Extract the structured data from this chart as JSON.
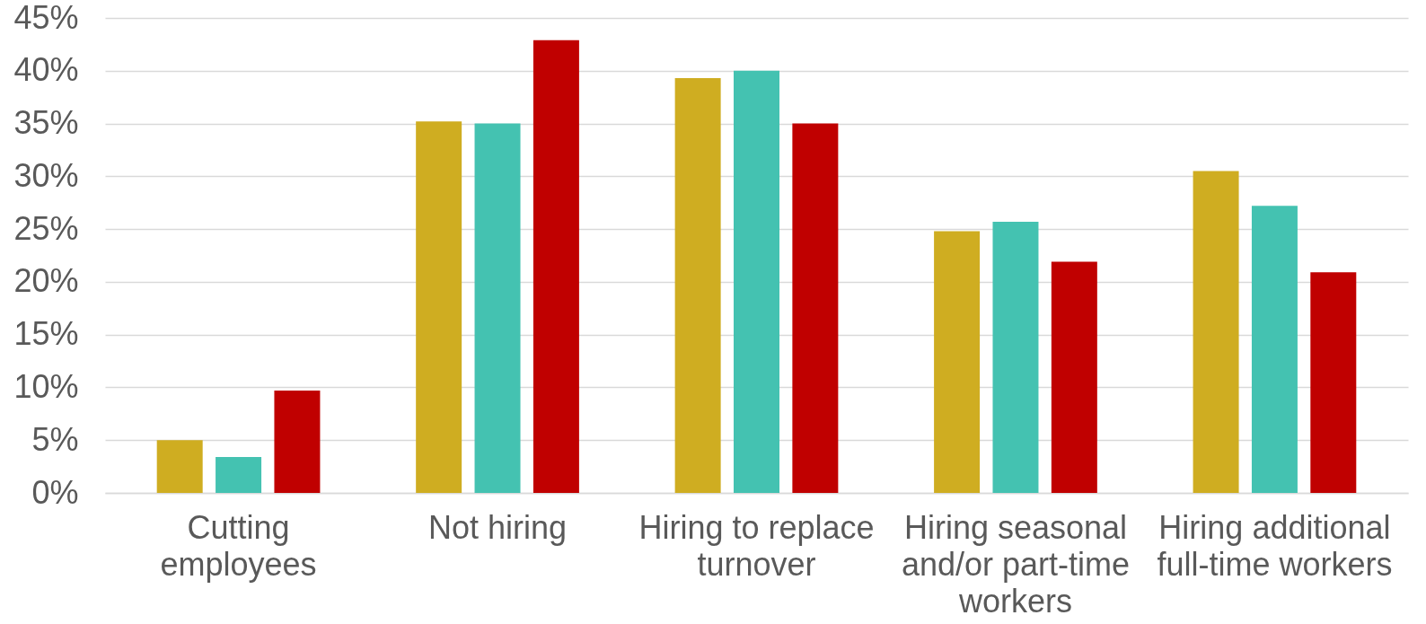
{
  "chart_data": {
    "type": "bar",
    "categories": [
      "Cutting employees",
      "Not hiring",
      "Hiring to replace turnover",
      "Hiring seasonal and/or part-time workers",
      "Hiring additional full-time workers"
    ],
    "series": [
      {
        "color": "#cfad21",
        "values": [
          5.0,
          35.2,
          39.3,
          24.8,
          30.5
        ]
      },
      {
        "color": "#44c2b1",
        "values": [
          3.4,
          35.0,
          40.0,
          25.7,
          27.2
        ]
      },
      {
        "color": "#c00000",
        "values": [
          9.7,
          42.9,
          35.0,
          21.9,
          20.9
        ]
      }
    ],
    "ylim": [
      0,
      45
    ],
    "yticks": [
      {
        "value": 0,
        "label": "0%"
      },
      {
        "value": 5,
        "label": "5%"
      },
      {
        "value": 10,
        "label": "10%"
      },
      {
        "value": 15,
        "label": "15%"
      },
      {
        "value": 20,
        "label": "20%"
      },
      {
        "value": 25,
        "label": "25%"
      },
      {
        "value": 30,
        "label": "30%"
      },
      {
        "value": 35,
        "label": "35%"
      },
      {
        "value": 40,
        "label": "40%"
      },
      {
        "value": 45,
        "label": "45%"
      }
    ],
    "grid": "y"
  }
}
